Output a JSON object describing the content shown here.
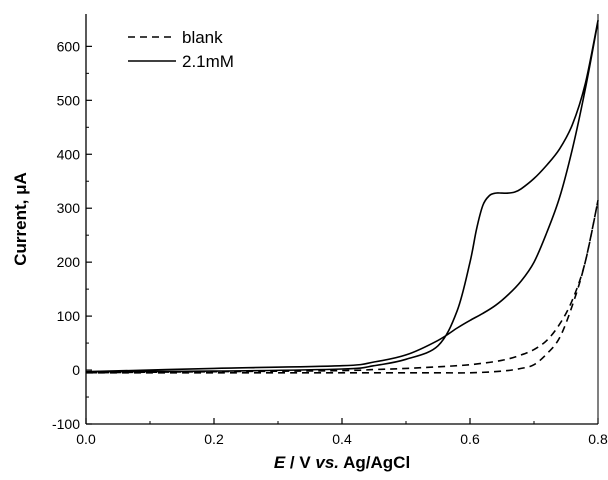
{
  "chart_data": {
    "type": "line",
    "xlabel_italic": "E",
    "xlabel_rest": " / V ",
    "xlabel_vs": "vs.",
    "xlabel_tail": " Ag/AgCl",
    "ylabel": "Current, μA",
    "xlim": [
      0.0,
      0.8
    ],
    "ylim": [
      -100,
      660
    ],
    "x_ticks": [
      "0.0",
      "0.2",
      "0.4",
      "0.6",
      "0.8"
    ],
    "y_ticks": [
      "-100",
      "0",
      "100",
      "200",
      "300",
      "400",
      "500",
      "600"
    ],
    "grid": false,
    "legend_position": "top-left",
    "series": [
      {
        "name": "blank",
        "style": "dashed",
        "color": "#000000",
        "x": [
          0.0,
          0.2,
          0.4,
          0.44,
          0.5,
          0.55,
          0.6,
          0.65,
          0.68,
          0.7,
          0.72,
          0.74,
          0.76,
          0.78,
          0.8,
          0.78,
          0.76,
          0.74,
          0.72,
          0.7,
          0.68,
          0.65,
          0.6,
          0.55,
          0.5,
          0.45,
          0.4,
          0.2,
          0.0
        ],
        "y": [
          -5,
          -5,
          -5,
          -5,
          -5,
          -5,
          -5,
          -2,
          3,
          10,
          30,
          60,
          120,
          200,
          315,
          200,
          130,
          85,
          55,
          38,
          28,
          18,
          10,
          6,
          3,
          1,
          -1,
          -3,
          -5
        ]
      },
      {
        "name": "2.1mM",
        "style": "solid",
        "color": "#000000",
        "x": [
          0.0,
          0.2,
          0.4,
          0.45,
          0.5,
          0.55,
          0.58,
          0.6,
          0.61,
          0.62,
          0.63,
          0.64,
          0.65,
          0.66,
          0.67,
          0.68,
          0.7,
          0.72,
          0.74,
          0.76,
          0.78,
          0.8,
          0.78,
          0.76,
          0.74,
          0.72,
          0.7,
          0.68,
          0.66,
          0.64,
          0.62,
          0.6,
          0.58,
          0.55,
          0.5,
          0.45,
          0.4,
          0.2,
          0.0
        ],
        "y": [
          -3,
          -2,
          2,
          8,
          20,
          45,
          110,
          200,
          260,
          305,
          323,
          328,
          328,
          328,
          330,
          336,
          355,
          380,
          410,
          455,
          530,
          648,
          520,
          410,
          320,
          255,
          200,
          165,
          140,
          120,
          105,
          92,
          78,
          55,
          28,
          15,
          8,
          3,
          -3
        ]
      }
    ]
  }
}
